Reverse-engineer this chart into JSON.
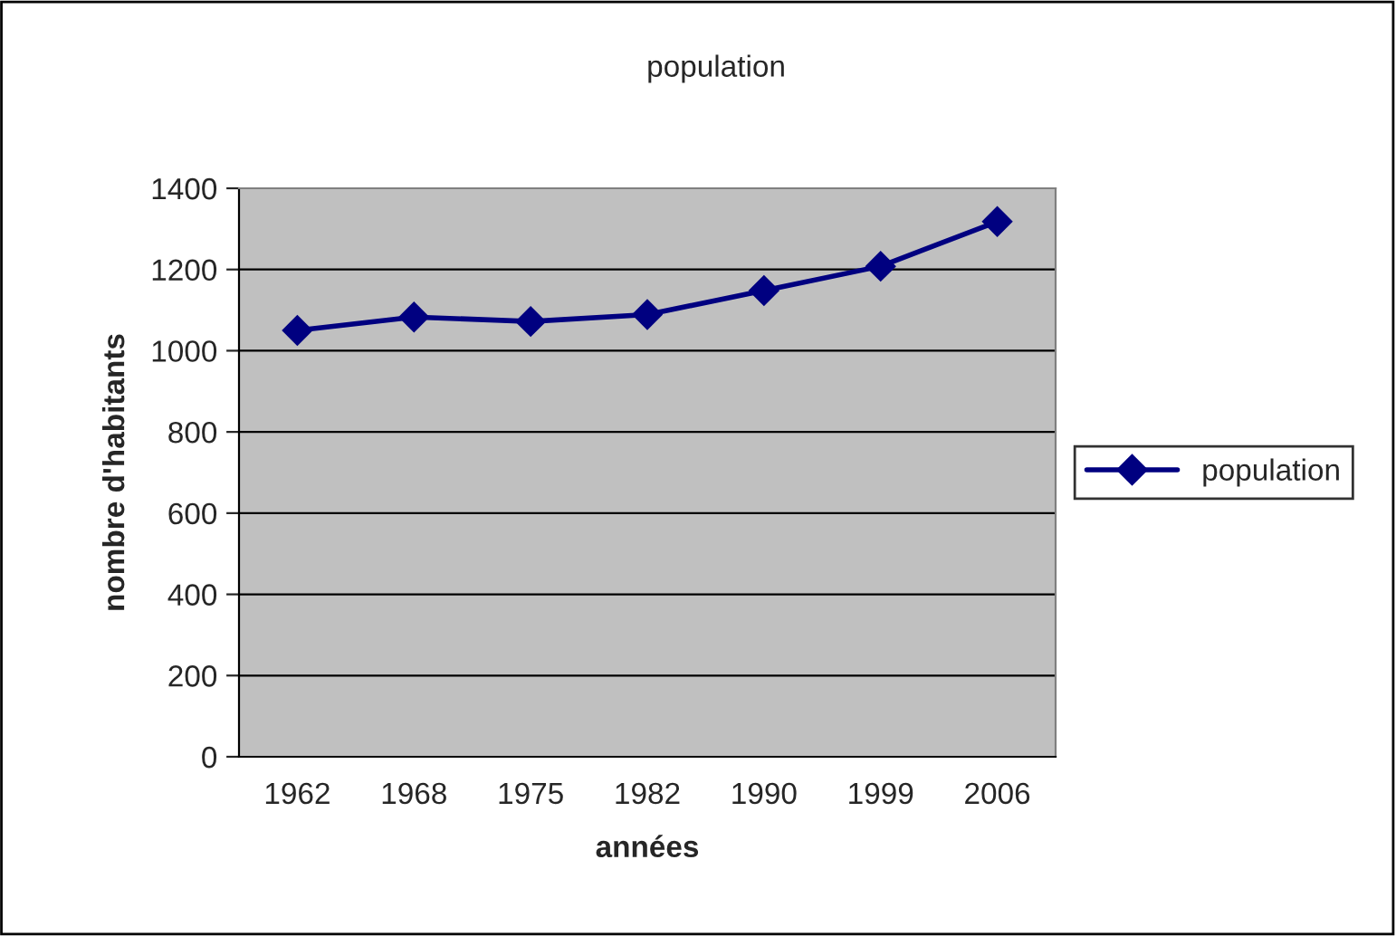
{
  "chart_data": {
    "type": "line",
    "title": "population",
    "xlabel": "années",
    "ylabel": "nombre d'habitants",
    "categories": [
      "1962",
      "1968",
      "1975",
      "1982",
      "1990",
      "1999",
      "2006"
    ],
    "series": [
      {
        "name": "population",
        "color": "#000080",
        "values": [
          1050,
          1083,
          1072,
          1089,
          1148,
          1208,
          1318
        ]
      }
    ],
    "ylim": [
      0,
      1400
    ],
    "yticks": [
      0,
      200,
      400,
      600,
      800,
      1000,
      1200,
      1400
    ],
    "grid": "y",
    "legend": "right",
    "marker": "diamond",
    "line_style": "solid"
  }
}
